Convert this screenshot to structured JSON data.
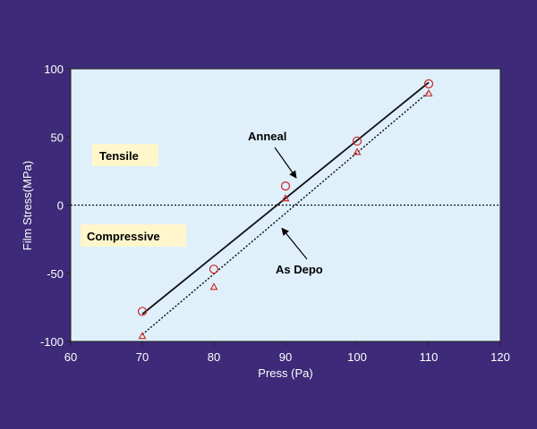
{
  "chart_data": {
    "type": "scatter",
    "xlabel": "Press (Pa)",
    "ylabel": "Film Stress(MPa)",
    "xlim": [
      60,
      120
    ],
    "ylim": [
      -100,
      100
    ],
    "xticks": [
      60,
      70,
      80,
      90,
      100,
      110,
      120
    ],
    "yticks": [
      -100,
      -50,
      0,
      50,
      100
    ],
    "x_tick_labels": [
      "60",
      "70",
      "80",
      "90",
      "100",
      "110",
      "120"
    ],
    "y_tick_labels": [
      "-100",
      "-50",
      "0",
      "50",
      "100"
    ],
    "grid": false,
    "zero_line": {
      "y": 0,
      "style": "dotted"
    },
    "series": [
      {
        "name": "Anneal",
        "marker": "circle",
        "color": "#cc2222",
        "x": [
          70,
          80,
          90,
          100,
          110
        ],
        "y": [
          -78,
          -47,
          14,
          47,
          89
        ],
        "fit_line": {
          "x": [
            70,
            110
          ],
          "y": [
            -80,
            90
          ],
          "style": "solid"
        }
      },
      {
        "name": "As Depo",
        "marker": "triangle",
        "color": "#cc2222",
        "x": [
          70,
          80,
          90,
          100,
          110
        ],
        "y": [
          -96,
          -60,
          5,
          39,
          82
        ],
        "fit_line": {
          "x": [
            70,
            110
          ],
          "y": [
            -95,
            83
          ],
          "style": "dotted"
        }
      }
    ],
    "annotations": [
      {
        "text": "Tensile",
        "boxed": true,
        "box_color": "#fff6cc"
      },
      {
        "text": "Compressive",
        "boxed": true,
        "box_color": "#fff6cc"
      },
      {
        "text": "Anneal",
        "arrow_to": {
          "x": 91.5,
          "y": 20
        }
      },
      {
        "text": "As Depo",
        "arrow_to": {
          "x": 89.5,
          "y": -17
        }
      }
    ]
  }
}
